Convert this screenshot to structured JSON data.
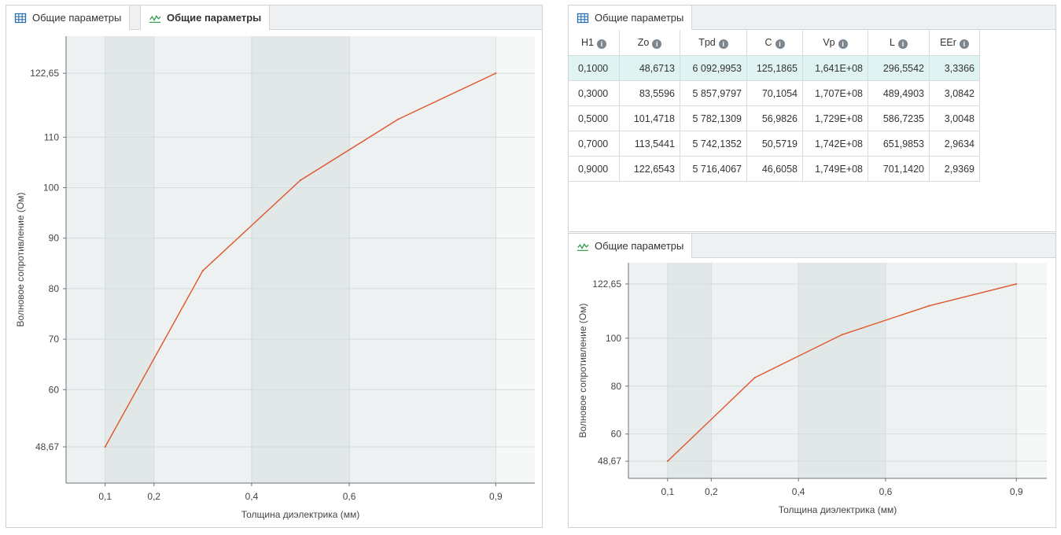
{
  "left_panel": {
    "tabs": [
      {
        "label": "Общие параметры",
        "icon": "table-icon",
        "active": false
      },
      {
        "label": "Общие параметры",
        "icon": "chart-line-icon",
        "active": true
      }
    ]
  },
  "table_panel": {
    "tab_label": "Общие параметры",
    "columns": [
      "H1",
      "Zo",
      "Tpd",
      "C",
      "Vp",
      "L",
      "EEr"
    ],
    "rows": [
      [
        "0,1000",
        "48,6713",
        "6 092,9953",
        "125,1865",
        "1,641E+08",
        "296,5542",
        "3,3366"
      ],
      [
        "0,3000",
        "83,5596",
        "5 857,9797",
        "70,1054",
        "1,707E+08",
        "489,4903",
        "3,0842"
      ],
      [
        "0,5000",
        "101,4718",
        "5 782,1309",
        "56,9826",
        "1,729E+08",
        "586,7235",
        "3,0048"
      ],
      [
        "0,7000",
        "113,5441",
        "5 742,1352",
        "50,5719",
        "1,742E+08",
        "651,9853",
        "2,9634"
      ],
      [
        "0,9000",
        "122,6543",
        "5 716,4067",
        "46,6058",
        "1,749E+08",
        "701,1420",
        "2,9369"
      ]
    ],
    "selected_row": 0
  },
  "small_chart_panel": {
    "tab_label": "Общие параметры"
  },
  "colors": {
    "line": "#e0562a",
    "band_dark": "#e2e8e8",
    "band_light": "#edf1f1",
    "band_lightest": "#f6f8f8",
    "accent_table": "#2a6fb0",
    "accent_chart": "#2e9a4b"
  },
  "chart_data": [
    {
      "type": "line",
      "x": [
        0.1,
        0.3,
        0.5,
        0.7,
        0.9
      ],
      "series": [
        {
          "name": "Zo",
          "values": [
            48.6713,
            83.5596,
            101.4718,
            113.5441,
            122.6543
          ]
        }
      ],
      "xlabel": "Толщина диэлектрика (мм)",
      "ylabel": "Волновое сопротивление (Ом)",
      "xlim": [
        0.02,
        0.98
      ],
      "ylim": [
        41.5,
        130
      ],
      "xticks": [
        0.1,
        0.2,
        0.4,
        0.6,
        0.9
      ],
      "xtick_labels": [
        "0,1",
        "0,2",
        "0,4",
        "0,6",
        "0,9"
      ],
      "yticks": [
        48.67,
        60,
        70,
        80,
        90,
        100,
        110,
        122.65
      ],
      "ytick_labels": [
        "48,67",
        "60",
        "70",
        "80",
        "90",
        "100",
        "110",
        "122,65"
      ]
    },
    {
      "type": "line",
      "x": [
        0.1,
        0.3,
        0.5,
        0.7,
        0.9
      ],
      "series": [
        {
          "name": "Zo",
          "values": [
            48.6713,
            83.5596,
            101.4718,
            113.5441,
            122.6543
          ]
        }
      ],
      "xlabel": "Толщина диэлектрика (мм)",
      "ylabel": "Волновое сопротивление (Ом)",
      "xlim": [
        0.01,
        0.97
      ],
      "ylim": [
        41.5,
        131.5
      ],
      "xticks": [
        0.1,
        0.2,
        0.4,
        0.6,
        0.9
      ],
      "xtick_labels": [
        "0,1",
        "0,2",
        "0,4",
        "0,6",
        "0,9"
      ],
      "yticks": [
        48.67,
        60,
        80,
        100,
        122.65
      ],
      "ytick_labels": [
        "48,67",
        "60",
        "80",
        "100",
        "122,65"
      ]
    }
  ]
}
